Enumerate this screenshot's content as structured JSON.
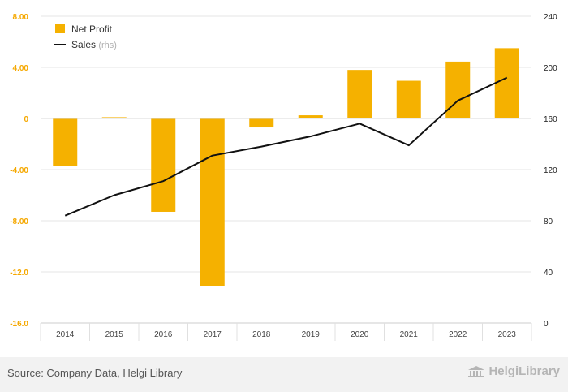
{
  "chart_data": {
    "type": "bar+line",
    "categories": [
      "2014",
      "2015",
      "2016",
      "2017",
      "2018",
      "2019",
      "2020",
      "2021",
      "2022",
      "2023"
    ],
    "series": [
      {
        "name": "Net Profit",
        "type": "bar",
        "axis": "left",
        "color": "#f5b100",
        "values": [
          -3.7,
          0.1,
          -7.3,
          -13.1,
          -0.7,
          0.25,
          3.8,
          2.95,
          4.45,
          5.5
        ]
      },
      {
        "name": "Sales",
        "legend_suffix": "(rhs)",
        "type": "line",
        "axis": "right",
        "color": "#111111",
        "values": [
          84,
          100,
          111,
          131,
          138,
          146,
          156,
          139,
          174,
          192
        ]
      }
    ],
    "left_axis": {
      "range": [
        -16,
        8
      ],
      "ticks": [
        8,
        4,
        0,
        -4,
        -8,
        -12,
        -16
      ],
      "tick_labels": [
        "8.00",
        "4.00",
        "0",
        "-4.00",
        "-8.00",
        "-12.0",
        "-16.0"
      ],
      "color": "#f5a800"
    },
    "right_axis": {
      "range": [
        0,
        240
      ],
      "ticks": [
        240,
        200,
        160,
        120,
        80,
        40,
        0
      ],
      "tick_labels": [
        "240",
        "200",
        "160",
        "120",
        "80",
        "40",
        "0"
      ]
    },
    "legend": {
      "position": "top-left",
      "items": [
        {
          "label": "Net Profit",
          "suffix": ""
        },
        {
          "label": "Sales",
          "suffix": "(rhs)"
        }
      ]
    },
    "grid": true
  },
  "footer": {
    "source": "Source: Company Data, Helgi Library",
    "logo_text": "HelgiLibrary",
    "logo_icon": "library-building-icon"
  }
}
